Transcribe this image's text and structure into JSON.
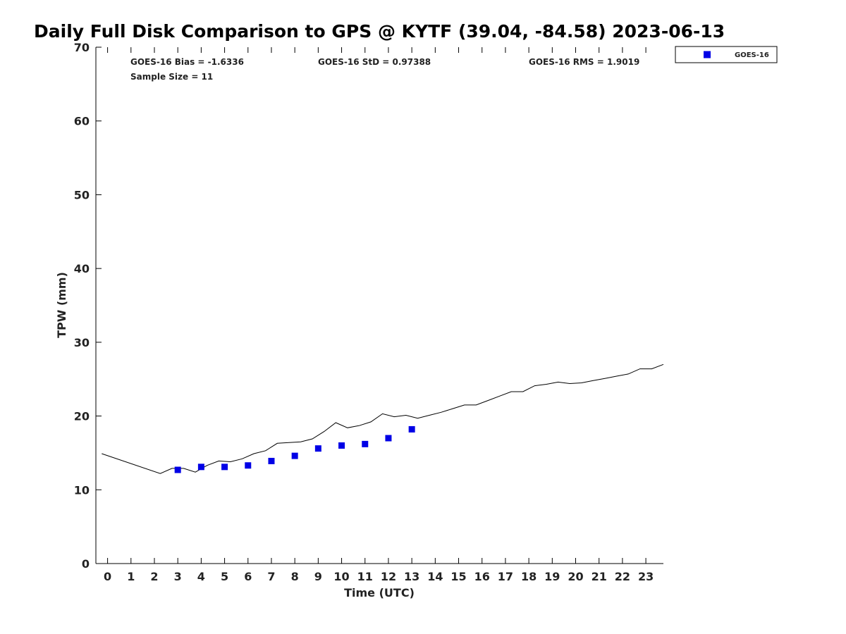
{
  "title": "Daily Full Disk Comparison to GPS @ KYTF (39.04, -84.58) 2023-06-13",
  "stats": {
    "bias": "GOES-16 Bias = -1.6336",
    "std": "GOES-16 StD = 0.97388",
    "rms": "GOES-16 RMS = 1.9019",
    "sample": "Sample Size = 11"
  },
  "colors": {
    "goes": "#0000e6",
    "gps": "#000000"
  },
  "chart_data": {
    "type": "line",
    "xlabel": "Time (UTC)",
    "ylabel": "TPW (mm)",
    "xlim": [
      -0.5,
      23.75
    ],
    "ylim": [
      0,
      70
    ],
    "xticks": [
      0,
      1,
      2,
      3,
      4,
      5,
      6,
      7,
      8,
      9,
      10,
      11,
      12,
      13,
      14,
      15,
      16,
      17,
      18,
      19,
      20,
      21,
      22,
      23
    ],
    "yticks": [
      0,
      10,
      20,
      30,
      40,
      50,
      60,
      70
    ],
    "grid": false,
    "legend_position": "top-right",
    "series": [
      {
        "name": "",
        "style": "line",
        "x": [
          -0.25,
          2.25,
          2.75,
          3.25,
          3.75,
          4.25,
          4.75,
          5.25,
          5.75,
          6.25,
          6.75,
          7.25,
          7.75,
          8.25,
          8.75,
          9.25,
          9.75,
          10.25,
          10.75,
          11.25,
          11.75,
          12.25,
          12.75,
          13.25,
          13.75,
          14.25,
          14.75,
          15.25,
          15.75,
          16.25,
          16.75,
          17.25,
          17.75,
          18.25,
          18.75,
          19.25,
          19.75,
          20.25,
          20.75,
          21.25,
          21.75,
          22.25,
          22.75,
          23.25,
          23.75
        ],
        "y": [
          14.9,
          12.2,
          12.9,
          12.9,
          12.4,
          13.3,
          13.9,
          13.8,
          14.2,
          14.9,
          15.3,
          16.3,
          16.4,
          16.5,
          16.9,
          17.9,
          19.1,
          18.4,
          18.7,
          19.2,
          20.3,
          19.9,
          20.1,
          19.7,
          20.1,
          20.5,
          21.0,
          21.5,
          21.5,
          22.1,
          22.7,
          23.3,
          23.3,
          24.1,
          24.3,
          24.6,
          24.4,
          24.5,
          24.8,
          25.1,
          25.4,
          25.7,
          26.4,
          26.4,
          27.0
        ]
      },
      {
        "name": "GOES-16",
        "style": "marker",
        "x": [
          3,
          4,
          5,
          6,
          7,
          8,
          9,
          10,
          11,
          12,
          13
        ],
        "y": [
          12.7,
          13.1,
          13.1,
          13.3,
          13.9,
          14.6,
          15.6,
          16.0,
          16.2,
          17.0,
          18.2
        ]
      }
    ]
  }
}
